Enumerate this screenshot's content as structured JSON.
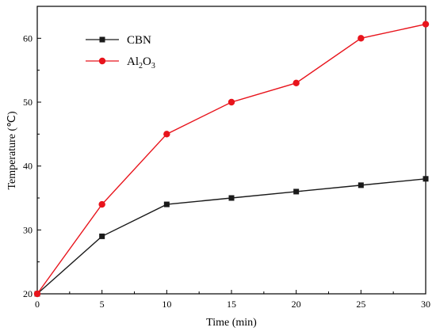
{
  "chart_data": {
    "type": "line",
    "xlabel": "Time (min)",
    "ylabel": "Temperature (℃)",
    "xlim": [
      0,
      30
    ],
    "ylim": [
      20,
      65
    ],
    "x_ticks": [
      0,
      5,
      10,
      15,
      20,
      25,
      30
    ],
    "y_ticks": [
      20,
      30,
      40,
      50,
      60
    ],
    "grid": false,
    "legend_position": "top-left",
    "x": [
      0,
      5,
      10,
      15,
      20,
      25,
      30
    ],
    "series": [
      {
        "name": "CBN",
        "name_parts": {
          "main": "CBN"
        },
        "color": "#1a1a1a",
        "marker": "square",
        "values": [
          20,
          29,
          34,
          35,
          36,
          37,
          38
        ]
      },
      {
        "name": "Al2O3",
        "name_parts": {
          "a": "Al",
          "sub1": "2",
          "b": "O",
          "sub2": "3"
        },
        "color": "#e8141c",
        "marker": "circle",
        "values": [
          20,
          34,
          45,
          50,
          53,
          60,
          62.2
        ]
      }
    ]
  }
}
